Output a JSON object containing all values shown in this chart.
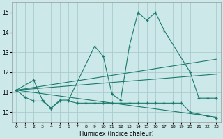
{
  "xlabel": "Humidex (Indice chaleur)",
  "xlim": [
    -0.5,
    23.5
  ],
  "ylim": [
    9.5,
    15.5
  ],
  "xticks": [
    0,
    1,
    2,
    3,
    4,
    5,
    6,
    7,
    8,
    9,
    10,
    11,
    12,
    13,
    14,
    15,
    16,
    17,
    18,
    19,
    20,
    21,
    22,
    23
  ],
  "yticks": [
    10,
    11,
    12,
    13,
    14,
    15
  ],
  "bg_color": "#cce8e8",
  "grid_color": "#aacccc",
  "line_color": "#1a7a6e",
  "lines": [
    {
      "x": [
        0,
        2,
        3,
        4,
        5,
        6,
        9,
        10,
        11,
        12,
        13,
        14,
        15,
        16,
        17,
        20,
        21,
        22,
        23
      ],
      "y": [
        11.1,
        11.6,
        10.6,
        10.2,
        10.6,
        10.6,
        13.3,
        12.8,
        10.9,
        10.6,
        13.3,
        15.0,
        14.6,
        15.0,
        14.1,
        12.0,
        10.7,
        10.7,
        10.7
      ],
      "marker": true
    },
    {
      "x": [
        0,
        1,
        2,
        3,
        4,
        5,
        6,
        7,
        8,
        9,
        10,
        11,
        12,
        13,
        14,
        15,
        16,
        17,
        18,
        19,
        20,
        21,
        22,
        23
      ],
      "y": [
        11.1,
        10.75,
        10.55,
        10.55,
        10.2,
        10.55,
        10.55,
        10.45,
        10.45,
        10.45,
        10.45,
        10.45,
        10.45,
        10.45,
        10.45,
        10.45,
        10.45,
        10.45,
        10.45,
        10.45,
        10.0,
        9.9,
        9.8,
        9.7
      ],
      "marker": true
    },
    {
      "x": [
        0,
        23
      ],
      "y": [
        11.1,
        12.65
      ],
      "marker": false
    },
    {
      "x": [
        0,
        23
      ],
      "y": [
        11.1,
        11.9
      ],
      "marker": false
    },
    {
      "x": [
        0,
        23
      ],
      "y": [
        11.1,
        9.75
      ],
      "marker": false
    }
  ]
}
